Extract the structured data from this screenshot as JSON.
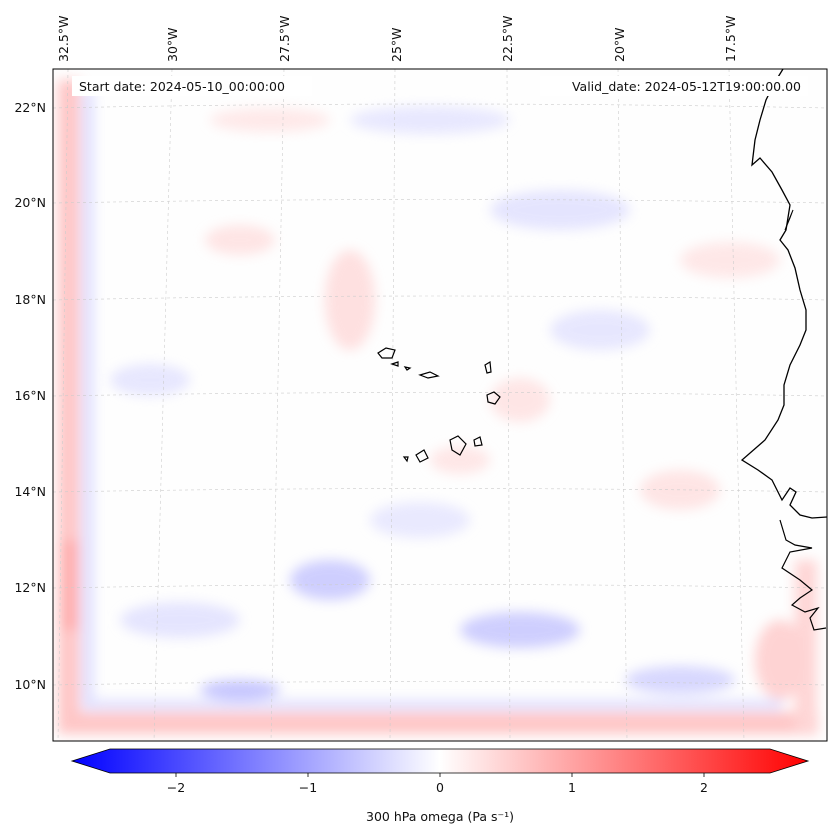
{
  "map": {
    "start_date_label": "Start date: 2024-05-10_00:00:00",
    "valid_date_label": "Valid_date: 2024-05-12T19:00:00.00",
    "lon_labels": [
      "32.5°W",
      "30°W",
      "27.5°W",
      "25°W",
      "22.5°W",
      "20°W",
      "17.5°W"
    ],
    "lat_labels": [
      "22°N",
      "20°N",
      "18°N",
      "16°N",
      "14°N",
      "12°N",
      "10°N"
    ],
    "colormap": "bwr",
    "frame_color": "#000000",
    "grid_color": "#cccccc"
  },
  "colorbar": {
    "label": "300 hPa omega (Pa s⁻¹)",
    "min": -2.75,
    "max": 2.75,
    "tick_values": [
      -2,
      -1,
      0,
      1,
      2
    ],
    "tick_labels": [
      "−2",
      "−1",
      "0",
      "1",
      "2"
    ],
    "color_low": "#0000ff",
    "color_mid": "#ffffff",
    "color_high": "#ff0000"
  }
}
